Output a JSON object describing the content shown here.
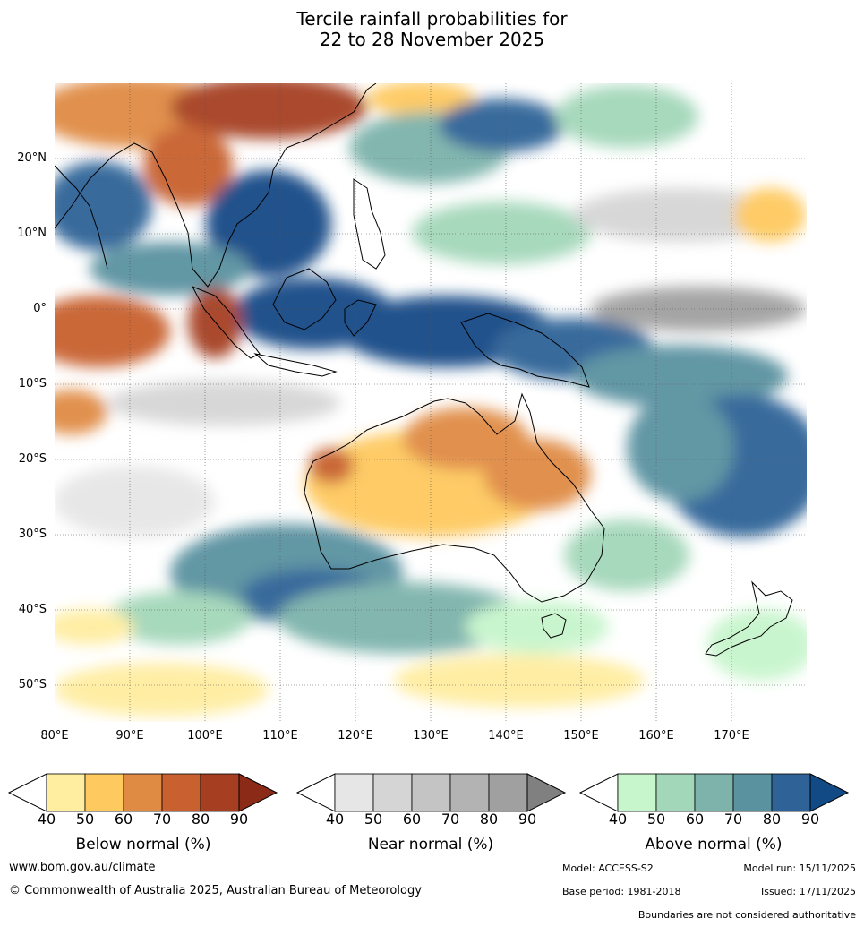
{
  "title_line1": "Tercile rainfall probabilities for",
  "title_line2": "22 to 28 November 2025",
  "lat_labels": [
    "20°N",
    "10°N",
    "0°",
    "10°S",
    "20°S",
    "30°S",
    "40°S",
    "50°S"
  ],
  "lon_labels": [
    "80°E",
    "90°E",
    "100°E",
    "110°E",
    "120°E",
    "130°E",
    "140°E",
    "150°E",
    "160°E",
    "170°E"
  ],
  "colorbars": [
    {
      "title": "Below normal (%)",
      "ticks": [
        "40",
        "50",
        "60",
        "70",
        "80",
        "90"
      ],
      "colors": [
        "#ffeda0",
        "#fec95f",
        "#e08b44",
        "#c8602f",
        "#a63f22",
        "#8b2b17"
      ]
    },
    {
      "title": "Near normal (%)",
      "ticks": [
        "40",
        "50",
        "60",
        "70",
        "80",
        "90"
      ],
      "colors": [
        "#e6e6e6",
        "#d5d5d5",
        "#c4c4c4",
        "#b3b3b3",
        "#a0a0a0",
        "#808080"
      ]
    },
    {
      "title": "Above normal (%)",
      "ticks": [
        "40",
        "50",
        "60",
        "70",
        "80",
        "90"
      ],
      "colors": [
        "#c7f5cc",
        "#a3d7b9",
        "#7db3ab",
        "#5a92a0",
        "#2f6397",
        "#124a86"
      ]
    }
  ],
  "footer": {
    "website": "www.bom.gov.au/climate",
    "copyright": "© Commonwealth of Australia 2025, Australian Bureau of Meteorology",
    "model": "Model: ACCESS-S2",
    "model_run": "Model run: 15/11/2025",
    "base_period": "Base period: 1981-2018",
    "issued": "Issued: 17/11/2025",
    "disclaimer": "Boundaries are not considered authoritative"
  }
}
